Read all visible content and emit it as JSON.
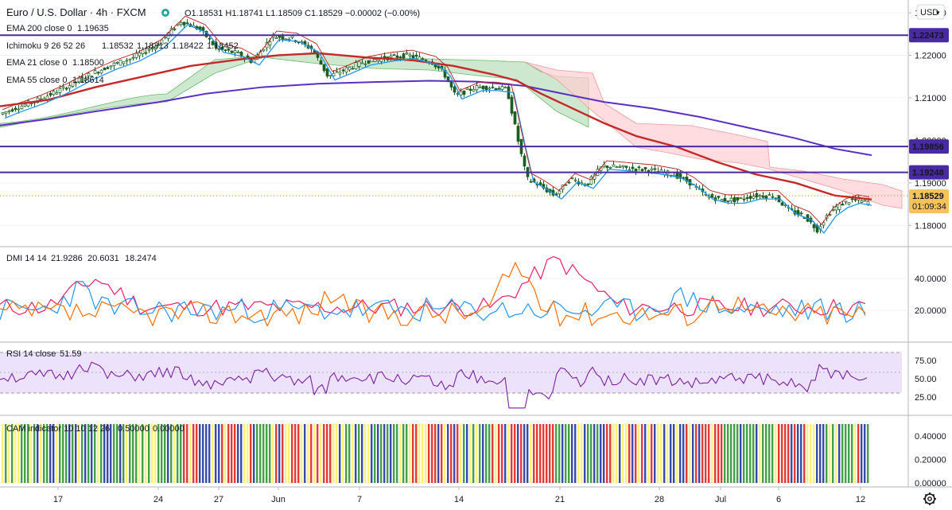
{
  "header": {
    "symbol": "Euro / U.S. Dollar · 4h · FXCM",
    "ohlc_text": "O1.18531 H1.18741 L1.18509 C1.18529 −0.00002 (−0.00%)",
    "currency": "USD",
    "currency_caret": "▾"
  },
  "legends": {
    "ema200": {
      "label": "EMA 200 close 0",
      "value": "1.19635",
      "color": "#5b2fc4"
    },
    "ichimoku": {
      "label": "Ichimoku 9 26 52 26",
      "v1": "1.18532",
      "v2": "1.18313",
      "v3": "1.18422",
      "v4": "1.18452"
    },
    "ema21": {
      "label": "EMA 21 close 0",
      "value": "1.18500",
      "color": "#2196f3"
    },
    "ema55": {
      "label": "EMA 55 close 0",
      "value": "1.18614",
      "color": "#c62828"
    },
    "dmi": {
      "label": "DMI 14 14",
      "v1": "21.9286",
      "v2": "20.6031",
      "v3": "18.2474"
    },
    "rsi": {
      "label": "RSI 14 close",
      "value": "51.59"
    },
    "cam": {
      "label": "CAM indicator 10 10 12 26",
      "v1": "0.50000",
      "v2": "0.00000"
    }
  },
  "price_scale": {
    "ticks": [
      "1.23000",
      "1.22000",
      "1.21000",
      "1.20000",
      "1.19000",
      "1.18000"
    ],
    "levels": [
      {
        "name": "resistance-1",
        "label": "1.22473"
      },
      {
        "name": "resistance-2",
        "label": "1.19856"
      },
      {
        "name": "resistance-3",
        "label": "1.19248"
      }
    ],
    "current_price": "1.18529",
    "countdown": "01:09:34"
  },
  "dmi_scale": {
    "ticks": [
      "40.0000",
      "20.0000"
    ]
  },
  "rsi_scale": {
    "ticks": [
      "75.00",
      "50.00",
      "25.00"
    ]
  },
  "cam_scale": {
    "ticks": [
      "0.40000",
      "0.20000",
      "0.00000"
    ]
  },
  "time_axis": {
    "labels": [
      "17",
      "24",
      "27",
      "Jun",
      "7",
      "14",
      "21",
      "28",
      "Jul",
      "6",
      "12"
    ]
  },
  "colors": {
    "ema200": "#5b2fc4",
    "ema55": "#c62828",
    "ema21": "#2196f3",
    "level_line": "#4a2aa0",
    "candle": "#1b5e20",
    "kumo_bull": "#a5d6a7",
    "kumo_bear": "#ffcdd2",
    "rsi_band": "#ede2fb",
    "cam_colors": [
      "#e53935",
      "#43a047",
      "#3949ab",
      "#fff176"
    ]
  },
  "chart_data": {
    "type": "line",
    "title": "Euro / U.S. Dollar · 4h · FXCM",
    "x": [
      "17",
      "24",
      "27",
      "Jun",
      "7",
      "14",
      "21",
      "28",
      "Jul",
      "6",
      "12"
    ],
    "series": [
      {
        "name": "EMA 200 close 0",
        "values": [
          1.2035,
          1.209,
          1.212,
          1.2135,
          1.214,
          1.213,
          1.2105,
          1.207,
          1.203,
          1.1995,
          1.1965
        ]
      },
      {
        "name": "EMA 55 close 0",
        "values": [
          1.208,
          1.216,
          1.2195,
          1.22,
          1.2185,
          1.215,
          1.207,
          1.1975,
          1.192,
          1.188,
          1.1861
        ]
      },
      {
        "name": "EMA 21 close 0",
        "values": [
          1.21,
          1.22,
          1.22,
          1.221,
          1.218,
          1.213,
          1.192,
          1.1925,
          1.187,
          1.184,
          1.185
        ]
      }
    ],
    "ylim": [
      1.175,
      1.233
    ]
  }
}
